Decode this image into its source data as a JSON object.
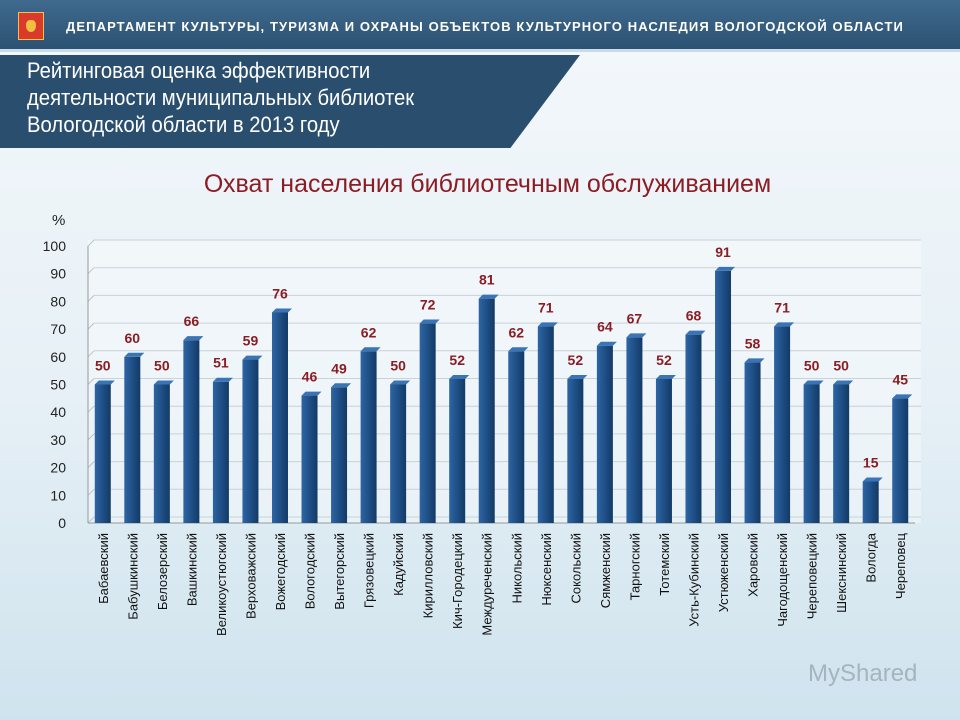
{
  "header": {
    "department": "ДЕПАРТАМЕНТ КУЛЬТУРЫ, ТУРИЗМА И ОХРАНЫ ОБЪЕКТОВ КУЛЬТУРНОГО НАСЛЕДИЯ ВОЛОГОДСКОЙ ОБЛАСТИ",
    "title_lines": [
      "Рейтинговая оценка эффективности",
      "деятельности муниципальных библиотек",
      "Вологодской области в 2013 году"
    ]
  },
  "watermark": "MyShared",
  "chart_data": {
    "type": "bar",
    "title": "Охват населения библиотечным обслуживанием",
    "ylabel": "%",
    "ylim": [
      0,
      100
    ],
    "yticks": [
      0,
      10,
      20,
      30,
      40,
      50,
      60,
      70,
      80,
      90,
      100
    ],
    "grid": true,
    "bar_color": "#1f4f86",
    "label_color": "#8b1d24",
    "categories": [
      "Бабаевский",
      "Бабушкинский",
      "Белозерский",
      "Вашкинский",
      "Великоустюгский",
      "Верховажский",
      "Вожегодский",
      "Вологодский",
      "Вытегорский",
      "Грязовецкий",
      "Кадуйский",
      "Кирилловский",
      "Кич-Городецкий",
      "Междуреченский",
      "Никольский",
      "Нюксенский",
      "Сокольский",
      "Сямженский",
      "Тарногский",
      "Тотемский",
      "Усть-Кубинский",
      "Устюженский",
      "Харовский",
      "Чагодощенский",
      "Череповецкий",
      "Шекснинский",
      "Вологда",
      "Череповец"
    ],
    "values": [
      50,
      60,
      50,
      66,
      51,
      59,
      76,
      46,
      49,
      62,
      50,
      72,
      52,
      81,
      62,
      71,
      52,
      64,
      67,
      52,
      68,
      91,
      58,
      71,
      50,
      50,
      15,
      45
    ]
  }
}
